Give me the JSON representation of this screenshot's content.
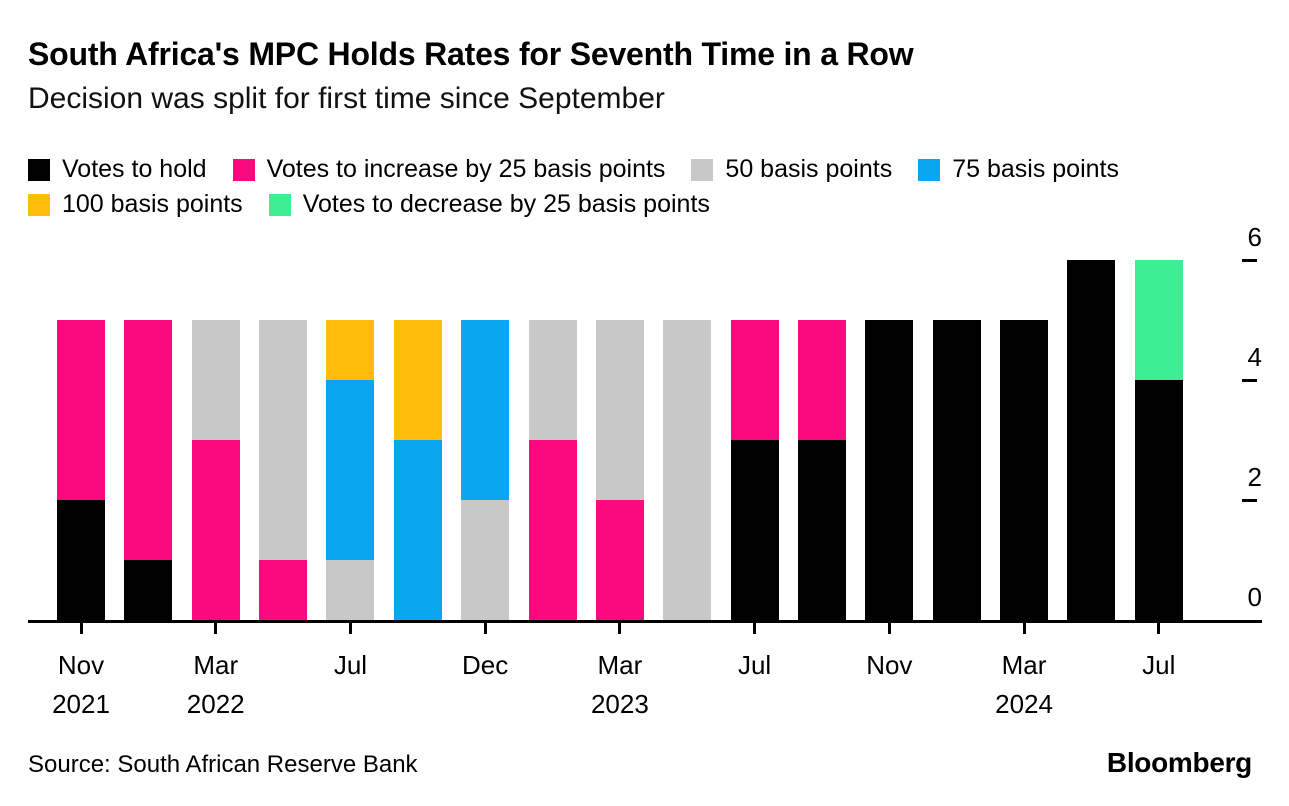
{
  "header": {
    "title": "South Africa's MPC Holds Rates for Seventh Time in a Row",
    "subtitle": "Decision was split for first time since September"
  },
  "legend": [
    {
      "key": "hold",
      "label": "Votes to hold",
      "color": "#000000"
    },
    {
      "key": "inc25",
      "label": "Votes to increase by 25 basis points",
      "color": "#FA0A7E"
    },
    {
      "key": "inc50",
      "label": "50 basis points",
      "color": "#C8C8C8"
    },
    {
      "key": "inc75",
      "label": "75 basis points",
      "color": "#0AA6F0"
    },
    {
      "key": "inc100",
      "label": "100 basis points",
      "color": "#FFBD0A"
    },
    {
      "key": "dec25",
      "label": "Votes to decrease by 25 basis points",
      "color": "#3EEE94"
    }
  ],
  "chart_data": {
    "type": "bar",
    "stacked": true,
    "title": "South Africa's MPC Holds Rates for Seventh Time in a Row",
    "subtitle": "Decision was split for first time since September",
    "ylabel": "",
    "xlabel": "",
    "ylim": [
      0,
      6
    ],
    "grid": false,
    "legend_position": "top",
    "yticks": [
      {
        "value": 6,
        "label": "6"
      },
      {
        "value": 4,
        "label": "4"
      },
      {
        "value": 2,
        "label": "2"
      },
      {
        "value": 0,
        "label": "0"
      }
    ],
    "series_colors": {
      "hold": "#000000",
      "inc25": "#FA0A7E",
      "inc50": "#C8C8C8",
      "inc75": "#0AA6F0",
      "inc100": "#FFBD0A",
      "dec25": "#3EEE94"
    },
    "series_labels": {
      "hold": "Votes to hold",
      "inc25": "Votes to increase by 25 basis points",
      "inc50": "50 basis points",
      "inc75": "75 basis points",
      "inc100": "100 basis points",
      "dec25": "Votes to decrease by 25 basis points"
    },
    "bars": [
      {
        "tick": [
          "Nov",
          "2021"
        ],
        "segments": [
          [
            "hold",
            2
          ],
          [
            "inc25",
            3
          ]
        ]
      },
      {
        "segments": [
          [
            "hold",
            1
          ],
          [
            "inc25",
            4
          ]
        ]
      },
      {
        "tick": [
          "Mar",
          "2022"
        ],
        "segments": [
          [
            "inc25",
            3
          ],
          [
            "inc50",
            2
          ]
        ]
      },
      {
        "segments": [
          [
            "inc25",
            1
          ],
          [
            "inc50",
            4
          ]
        ]
      },
      {
        "tick": [
          "Jul"
        ],
        "segments": [
          [
            "inc50",
            1
          ],
          [
            "inc75",
            3
          ],
          [
            "inc100",
            1
          ]
        ]
      },
      {
        "segments": [
          [
            "inc75",
            3
          ],
          [
            "inc100",
            2
          ]
        ]
      },
      {
        "tick": [
          "Dec"
        ],
        "segments": [
          [
            "inc50",
            2
          ],
          [
            "inc75",
            3
          ]
        ]
      },
      {
        "segments": [
          [
            "inc25",
            3
          ],
          [
            "inc50",
            2
          ]
        ]
      },
      {
        "tick": [
          "Mar",
          "2023"
        ],
        "segments": [
          [
            "inc25",
            2
          ],
          [
            "inc50",
            3
          ]
        ]
      },
      {
        "segments": [
          [
            "inc50",
            5
          ]
        ]
      },
      {
        "tick": [
          "Jul"
        ],
        "segments": [
          [
            "hold",
            3
          ],
          [
            "inc25",
            2
          ]
        ]
      },
      {
        "segments": [
          [
            "hold",
            3
          ],
          [
            "inc25",
            2
          ]
        ]
      },
      {
        "tick": [
          "Nov"
        ],
        "segments": [
          [
            "hold",
            5
          ]
        ]
      },
      {
        "segments": [
          [
            "hold",
            5
          ]
        ]
      },
      {
        "tick": [
          "Mar",
          "2024"
        ],
        "segments": [
          [
            "hold",
            5
          ]
        ]
      },
      {
        "segments": [
          [
            "hold",
            6
          ]
        ]
      },
      {
        "tick": [
          "Jul"
        ],
        "segments": [
          [
            "hold",
            4
          ],
          [
            "dec25",
            2
          ]
        ]
      }
    ]
  },
  "footer": {
    "source": "Source: South African Reserve Bank",
    "brand": "Bloomberg"
  }
}
